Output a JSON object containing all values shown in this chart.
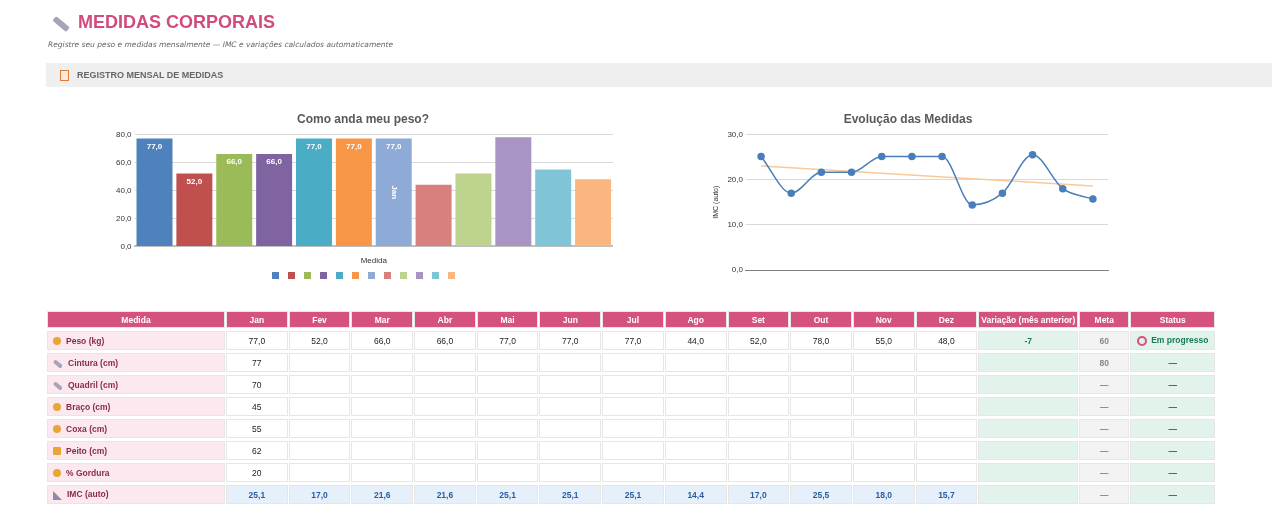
{
  "chart_data": [
    {
      "type": "other",
      "title": "MEDIDAS CORPORAIS",
      "subtitle": "Registre seu peso e medidas mensalmente — IMC e variações calculados automaticamente",
      "annotations": [
        "REGISTRO MENSAL DE MEDIDAS"
      ]
    },
    {
      "type": "bar",
      "title": "Como anda meu peso?",
      "xlabel": "Medida",
      "categories": [
        null,
        null,
        null,
        null,
        null,
        null,
        null,
        null,
        null,
        null,
        null,
        null
      ],
      "values": [
        77,
        52,
        66,
        66,
        77,
        77,
        77,
        44,
        52,
        78,
        55,
        48
      ],
      "colors": [
        "#4f81bd",
        "#c0504d",
        "#9bbb59",
        "#8064a2",
        "#4bacc6",
        "#f79646",
        "#8eaad6",
        "#d7807d",
        "#bdd38e",
        "#a895c3",
        "#80c5d7",
        "#f9b67f"
      ],
      "value_labels": [
        "77,0",
        "52,0",
        "66,0",
        "66,0",
        "77,0",
        "77,0",
        "77,0",
        null,
        null,
        null,
        null,
        null
      ],
      "annotations": [
        "Jan"
      ],
      "ylim": [
        0,
        80
      ],
      "yticks": [
        {
          "value": 0,
          "label": "0,0"
        },
        {
          "value": 20,
          "label": "20,0"
        },
        {
          "value": 40,
          "label": "40,0"
        },
        {
          "value": 60,
          "label": "60,0"
        },
        {
          "value": 80,
          "label": "80,0"
        }
      ],
      "grid": "y",
      "tick_labels": "y"
    },
    {
      "type": "line",
      "title": "Evolução das Medidas",
      "ylabel": "IMC (auto)",
      "categories": [
        null,
        null,
        null,
        null,
        null,
        null,
        null,
        null,
        null,
        null,
        null,
        null
      ],
      "series": [
        {
          "color": "#4a7ebb",
          "values": [
            25.1,
            17.0,
            21.6,
            21.6,
            25.1,
            25.1,
            25.1,
            14.4,
            17.0,
            25.5,
            18.0,
            15.7
          ],
          "marker": "circle"
        },
        {
          "color": "#f8c99a",
          "values": [
            23.0,
            null,
            null,
            null,
            null,
            null,
            null,
            null,
            null,
            null,
            null,
            18.6
          ],
          "marker": "none"
        }
      ],
      "ylim": [
        0,
        30
      ],
      "yticks": [
        {
          "value": 0,
          "label": "0,0"
        },
        {
          "value": 10,
          "label": "10,0"
        },
        {
          "value": 20,
          "label": "20,0"
        },
        {
          "value": 30,
          "label": "30,0"
        }
      ],
      "grid": "y",
      "legend": false,
      "tick_labels": "y"
    },
    {
      "type": "other",
      "ylabel": "Medida",
      "categories": [
        "Jan",
        "Fev",
        "Mar",
        "Abr",
        "Mai",
        "Jun",
        "Jul",
        "Ago",
        "Set",
        "Out",
        "Nov",
        "Dez",
        "Variação (mês anterior)",
        "Meta",
        "Status"
      ],
      "y_categories": [
        "Peso (kg)",
        "Cintura (cm)",
        "Quadril (cm)",
        "Braço (cm)",
        "Coxa (cm)",
        "Peito (cm)",
        "% Gordura",
        "IMC (auto)"
      ],
      "cell_labels": [
        [
          "77,0",
          "52,0",
          "66,0",
          "66,0",
          "77,0",
          "77,0",
          "77,0",
          "44,0",
          "52,0",
          "78,0",
          "55,0",
          "48,0",
          "-7",
          "60",
          "Em progresso"
        ],
        [
          "77",
          null,
          null,
          null,
          null,
          null,
          null,
          null,
          null,
          null,
          null,
          null,
          null,
          "80",
          "—"
        ],
        [
          "70",
          null,
          null,
          null,
          null,
          null,
          null,
          null,
          null,
          null,
          null,
          null,
          null,
          "—",
          "—"
        ],
        [
          "45",
          null,
          null,
          null,
          null,
          null,
          null,
          null,
          null,
          null,
          null,
          null,
          null,
          "—",
          "—"
        ],
        [
          "55",
          null,
          null,
          null,
          null,
          null,
          null,
          null,
          null,
          null,
          null,
          null,
          null,
          "—",
          "—"
        ],
        [
          "62",
          null,
          null,
          null,
          null,
          null,
          null,
          null,
          null,
          null,
          null,
          null,
          null,
          "—",
          "—"
        ],
        [
          "20",
          null,
          null,
          null,
          null,
          null,
          null,
          null,
          null,
          null,
          null,
          null,
          null,
          "—",
          "—"
        ],
        [
          "25,1",
          "17,0",
          "21,6",
          "21,6",
          "25,1",
          "25,1",
          "25,1",
          "14,4",
          "17,0",
          "25,5",
          "18,0",
          "15,7",
          null,
          "—",
          "—"
        ]
      ]
    }
  ]
}
